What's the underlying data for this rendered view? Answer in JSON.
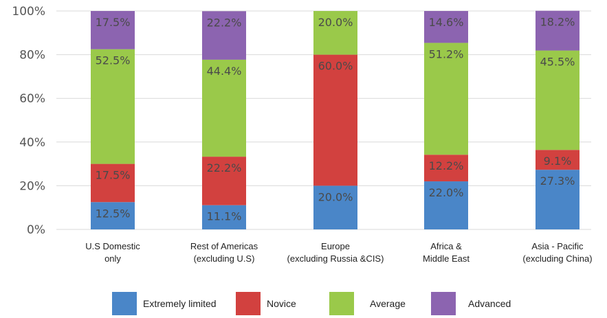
{
  "chart_data": {
    "type": "bar",
    "stacked": true,
    "categories": [
      [
        "U.S Domestic",
        "only"
      ],
      [
        "Rest of Americas",
        "(excluding U.S)"
      ],
      [
        "Europe",
        "(excluding Russia &CIS)"
      ],
      [
        "Africa &",
        "Middle East"
      ],
      [
        "Asia - Pacific",
        "(excluding China)"
      ]
    ],
    "series": [
      {
        "name": "Extremely limited",
        "color": "#4a86c8",
        "values": [
          12.5,
          11.1,
          20.0,
          22.0,
          27.3
        ],
        "labels": [
          "12.5%",
          "11.1%",
          "20.0%",
          "22.0%",
          "27.3%"
        ]
      },
      {
        "name": "Novice",
        "color": "#d2413f",
        "values": [
          17.5,
          22.2,
          60.0,
          12.2,
          9.1
        ],
        "labels": [
          "17.5%",
          "22.2%",
          "60.0%",
          "12.2%",
          "9.1%"
        ]
      },
      {
        "name": "Average",
        "color": "#9ac94a",
        "values": [
          52.5,
          44.4,
          20.0,
          51.2,
          45.5
        ],
        "labels": [
          "52.5%",
          "44.4%",
          "20.0%",
          "51.2%",
          "45.5%"
        ]
      },
      {
        "name": "Advanced",
        "color": "#8c64b0",
        "values": [
          17.5,
          22.2,
          0,
          14.6,
          18.2
        ],
        "labels": [
          "17.5%",
          "22.2%",
          "",
          "14.6%",
          "18.2%"
        ]
      }
    ],
    "yticks": [
      "0%",
      "20%",
      "40%",
      "60%",
      "80%",
      "100%"
    ],
    "ylim": [
      0,
      100
    ],
    "grid": true,
    "legend": "bottom"
  }
}
